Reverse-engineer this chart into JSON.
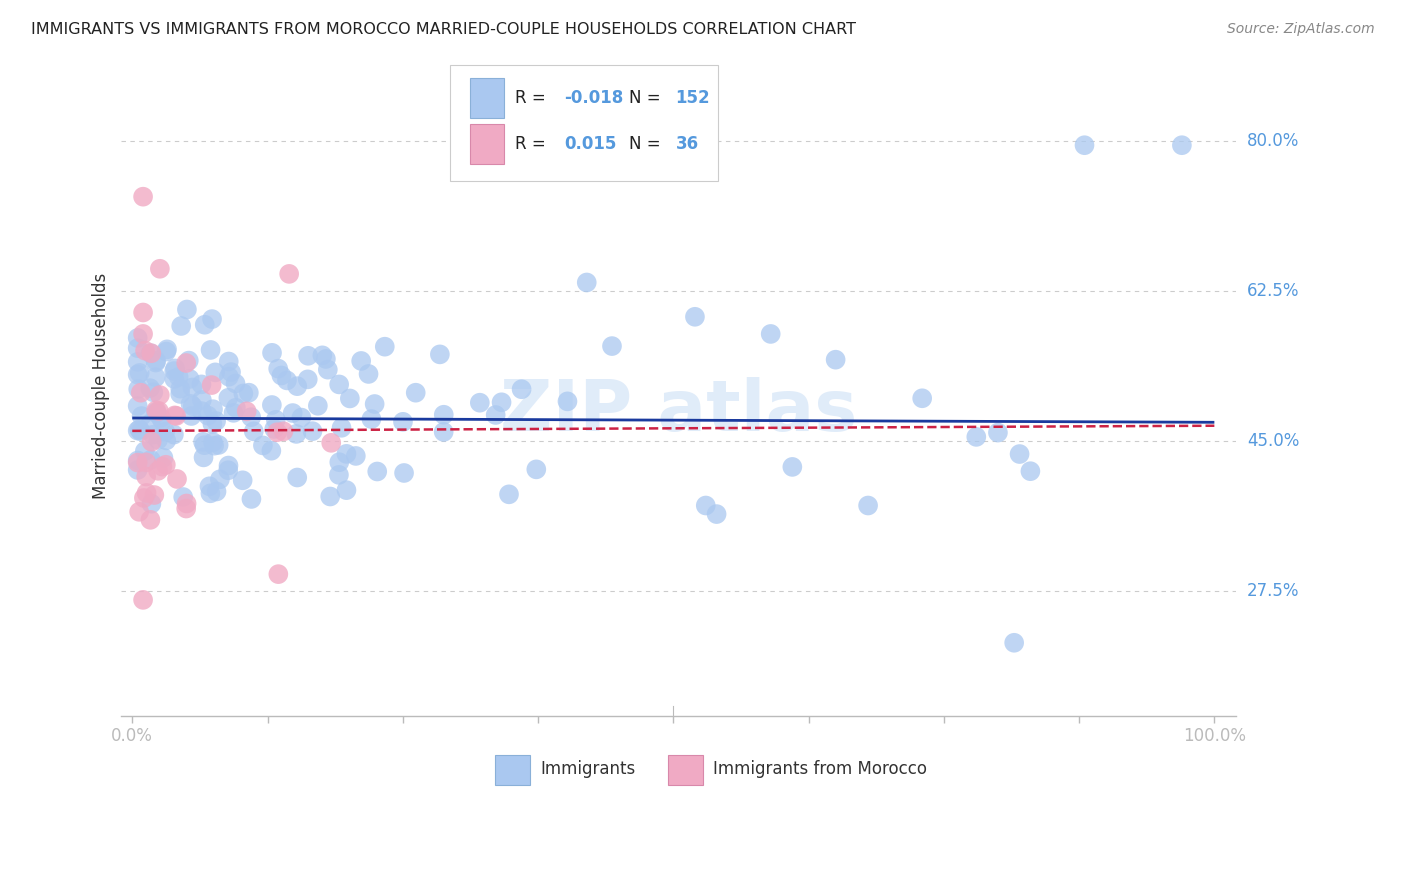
{
  "title": "IMMIGRANTS VS IMMIGRANTS FROM MOROCCO MARRIED-COUPLE HOUSEHOLDS CORRELATION CHART",
  "source": "Source: ZipAtlas.com",
  "ylabel": "Married-couple Households",
  "blue_color": "#aac8f0",
  "pink_color": "#f0aac4",
  "blue_line_color": "#1a3a9e",
  "pink_line_color": "#cc2244",
  "legend_blue_label": "Immigrants",
  "legend_pink_label": "Immigrants from Morocco",
  "R_blue": "-0.018",
  "N_blue": "152",
  "R_pink": "0.015",
  "N_pink": "36",
  "background_color": "#ffffff",
  "grid_color": "#cccccc",
  "title_color": "#222222",
  "axis_label_color": "#333333",
  "tick_label_color": "#5599dd",
  "ytick_vals": [
    0.275,
    0.45,
    0.625,
    0.8
  ],
  "ytick_labels": [
    "27.5%",
    "45.0%",
    "62.5%",
    "80.0%"
  ],
  "xlim": [
    -0.01,
    1.02
  ],
  "ylim": [
    0.13,
    0.9
  ]
}
